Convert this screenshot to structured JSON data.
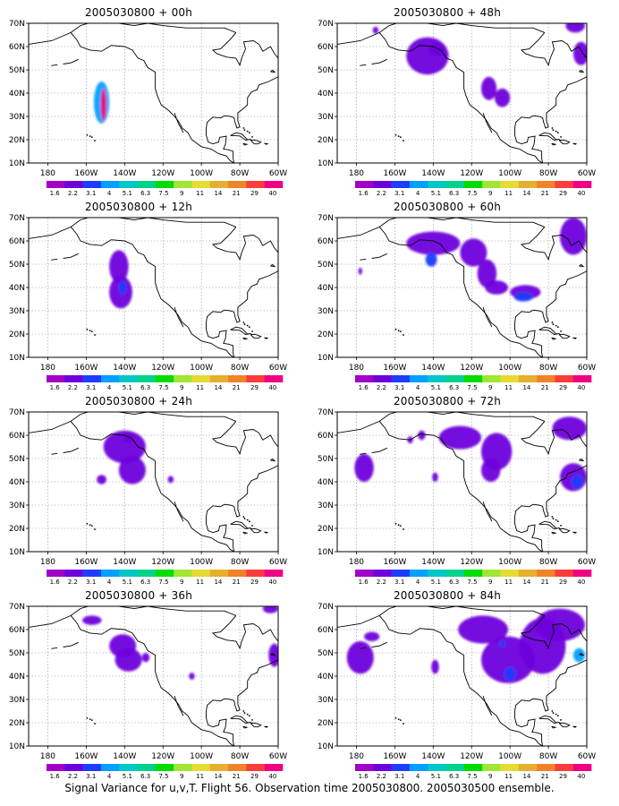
{
  "panels": [
    {
      "title": "2005030800 + 00h",
      "blobs": [
        {
          "lon": -152,
          "lat": 36,
          "rx": 4,
          "ry": 9,
          "v": 4
        },
        {
          "lon": -151,
          "lat": 35,
          "rx": 1.5,
          "ry": 7,
          "v": 40
        }
      ]
    },
    {
      "title": "2005030800 + 12h",
      "blobs": [
        {
          "lon": -143,
          "lat": 49,
          "rx": 5,
          "ry": 7,
          "v": 2.2
        },
        {
          "lon": -142,
          "lat": 38,
          "rx": 6,
          "ry": 7,
          "v": 2.2
        },
        {
          "lon": -141,
          "lat": 40,
          "rx": 2,
          "ry": 3,
          "v": 3.1
        }
      ]
    },
    {
      "title": "2005030800 + 24h",
      "blobs": [
        {
          "lon": -140,
          "lat": 55,
          "rx": 11,
          "ry": 7,
          "v": 2.2
        },
        {
          "lon": -136,
          "lat": 45,
          "rx": 7,
          "ry": 6,
          "v": 2.2
        },
        {
          "lon": -152,
          "lat": 41,
          "rx": 2.5,
          "ry": 2,
          "v": 2.2
        },
        {
          "lon": -116,
          "lat": 41,
          "rx": 1.5,
          "ry": 1.5,
          "v": 2.2
        },
        {
          "lon": -138,
          "lat": 59,
          "rx": 3,
          "ry": 2,
          "v": 2.2
        }
      ]
    },
    {
      "title": "2005030800 + 36h",
      "blobs": [
        {
          "lon": -157,
          "lat": 64,
          "rx": 5,
          "ry": 2,
          "v": 2.2
        },
        {
          "lon": -141,
          "lat": 53,
          "rx": 7,
          "ry": 5,
          "v": 2.2
        },
        {
          "lon": -138,
          "lat": 47,
          "rx": 7,
          "ry": 5,
          "v": 2.2
        },
        {
          "lon": -129,
          "lat": 48,
          "rx": 2,
          "ry": 2,
          "v": 2.2
        },
        {
          "lon": -105,
          "lat": 40,
          "rx": 1.5,
          "ry": 1.5,
          "v": 2.2
        },
        {
          "lon": -62,
          "lat": 49,
          "rx": 3,
          "ry": 5,
          "v": 2.2
        },
        {
          "lon": -64,
          "lat": 69,
          "rx": 4,
          "ry": 2,
          "v": 2.2
        }
      ]
    },
    {
      "title": "2005030800 + 48h",
      "blobs": [
        {
          "lon": -143,
          "lat": 56,
          "rx": 11,
          "ry": 8,
          "v": 2.2
        },
        {
          "lon": -138,
          "lat": 59,
          "rx": 4,
          "ry": 3,
          "v": 2.2
        },
        {
          "lon": -111,
          "lat": 42,
          "rx": 4,
          "ry": 5,
          "v": 2.2
        },
        {
          "lon": -104,
          "lat": 38,
          "rx": 4,
          "ry": 4,
          "v": 2.2
        },
        {
          "lon": -170,
          "lat": 67,
          "rx": 1.5,
          "ry": 1.5,
          "v": 2.2
        },
        {
          "lon": -63,
          "lat": 57,
          "rx": 4,
          "ry": 5,
          "v": 2.2
        },
        {
          "lon": -66,
          "lat": 69,
          "rx": 5,
          "ry": 3,
          "v": 2.2
        }
      ]
    },
    {
      "title": "2005030800 + 60h",
      "blobs": [
        {
          "lon": -140,
          "lat": 59,
          "rx": 14,
          "ry": 5,
          "v": 2.2
        },
        {
          "lon": -119,
          "lat": 55,
          "rx": 7,
          "ry": 6,
          "v": 2.2
        },
        {
          "lon": -112,
          "lat": 46,
          "rx": 5,
          "ry": 6,
          "v": 2.2
        },
        {
          "lon": -107,
          "lat": 40,
          "rx": 6,
          "ry": 3,
          "v": 2.2
        },
        {
          "lon": -92,
          "lat": 38,
          "rx": 8,
          "ry": 3,
          "v": 2.2
        },
        {
          "lon": -93,
          "lat": 36,
          "rx": 5,
          "ry": 2,
          "v": 3.1
        },
        {
          "lon": -141,
          "lat": 52,
          "rx": 3,
          "ry": 3,
          "v": 3.1
        },
        {
          "lon": -67,
          "lat": 62,
          "rx": 7,
          "ry": 8,
          "v": 2.2
        },
        {
          "lon": -178,
          "lat": 47,
          "rx": 1,
          "ry": 1.5,
          "v": 2.2
        }
      ]
    },
    {
      "title": "2005030800 + 72h",
      "blobs": [
        {
          "lon": -126,
          "lat": 59,
          "rx": 11,
          "ry": 5,
          "v": 2.2
        },
        {
          "lon": -107,
          "lat": 53,
          "rx": 8,
          "ry": 8,
          "v": 2.2
        },
        {
          "lon": -110,
          "lat": 45,
          "rx": 5,
          "ry": 5,
          "v": 2.2
        },
        {
          "lon": -176,
          "lat": 46,
          "rx": 5,
          "ry": 6,
          "v": 2.2
        },
        {
          "lon": -146,
          "lat": 60,
          "rx": 2,
          "ry": 2,
          "v": 2.2
        },
        {
          "lon": -152,
          "lat": 58,
          "rx": 1.5,
          "ry": 1.5,
          "v": 2.2
        },
        {
          "lon": -139,
          "lat": 42,
          "rx": 1.5,
          "ry": 2,
          "v": 2.2
        },
        {
          "lon": -69,
          "lat": 63,
          "rx": 9,
          "ry": 5,
          "v": 2.2
        },
        {
          "lon": -67,
          "lat": 42,
          "rx": 7,
          "ry": 6,
          "v": 2.2
        },
        {
          "lon": -65,
          "lat": 40,
          "rx": 3,
          "ry": 3,
          "v": 3.1
        }
      ]
    },
    {
      "title": "2005030800 + 84h",
      "blobs": [
        {
          "lon": -178,
          "lat": 48,
          "rx": 7,
          "ry": 7,
          "v": 2.2
        },
        {
          "lon": -172,
          "lat": 57,
          "rx": 4,
          "ry": 2,
          "v": 2.2
        },
        {
          "lon": -139,
          "lat": 44,
          "rx": 2,
          "ry": 3,
          "v": 2.2
        },
        {
          "lon": -114,
          "lat": 60,
          "rx": 13,
          "ry": 6,
          "v": 2.2
        },
        {
          "lon": -101,
          "lat": 47,
          "rx": 14,
          "ry": 10,
          "v": 2.2
        },
        {
          "lon": -83,
          "lat": 53,
          "rx": 12,
          "ry": 12,
          "v": 2.2
        },
        {
          "lon": -74,
          "lat": 62,
          "rx": 13,
          "ry": 7,
          "v": 2.2
        },
        {
          "lon": -100,
          "lat": 41,
          "rx": 3,
          "ry": 3,
          "v": 3.1
        },
        {
          "lon": -64,
          "lat": 49,
          "rx": 3,
          "ry": 3,
          "v": 4
        },
        {
          "lon": -104,
          "lat": 54,
          "rx": 1.5,
          "ry": 1.5,
          "v": 3.1
        }
      ]
    }
  ],
  "map": {
    "lon_range": [
      -190,
      -60
    ],
    "lat_range": [
      10,
      70
    ],
    "lon_ticks": [
      {
        "lon": -180,
        "label": "180"
      },
      {
        "lon": -160,
        "label": "160W"
      },
      {
        "lon": -140,
        "label": "140W"
      },
      {
        "lon": -120,
        "label": "120W"
      },
      {
        "lon": -100,
        "label": "100W"
      },
      {
        "lon": -80,
        "label": "80W"
      },
      {
        "lon": -60,
        "label": "60W"
      }
    ],
    "lat_ticks": [
      {
        "lat": 10,
        "label": "10N"
      },
      {
        "lat": 20,
        "label": "20N"
      },
      {
        "lat": 30,
        "label": "30N"
      },
      {
        "lat": 40,
        "label": "40N"
      },
      {
        "lat": 50,
        "label": "50N"
      },
      {
        "lat": 60,
        "label": "60N"
      },
      {
        "lat": 70,
        "label": "70N"
      }
    ],
    "gridlines": "dotted",
    "coastline_color": "#000000"
  },
  "colorbar": {
    "labels": [
      "1.6",
      "2.2",
      "3.1",
      "4",
      "5.1",
      "6.3",
      "7.5",
      "9",
      "11",
      "14",
      "21",
      "29",
      "40"
    ],
    "colors": [
      "#a000c8",
      "#6e00dc",
      "#1e3cff",
      "#00a0ff",
      "#00c8c8",
      "#00d28c",
      "#00dc00",
      "#a0e632",
      "#e6dc32",
      "#e6af2d",
      "#f08228",
      "#fa3c3c",
      "#f00082"
    ]
  },
  "footer": "Signal Variance for u,v,T. Flight 56. Observation time 2005030800. 2005030500 ensemble."
}
